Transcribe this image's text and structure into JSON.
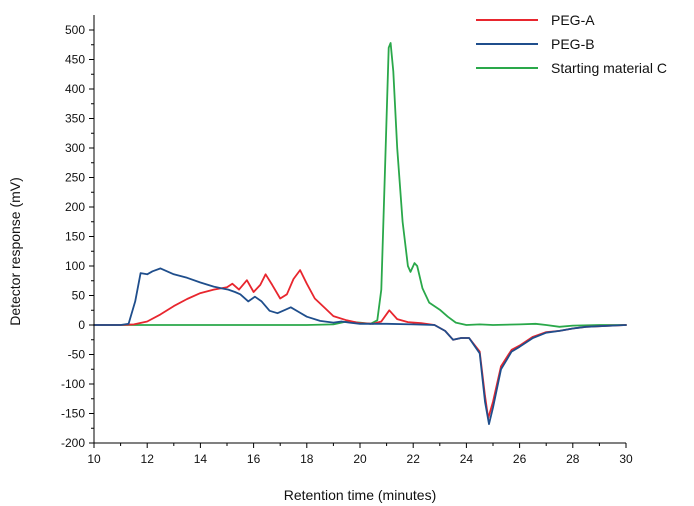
{
  "chart_data": {
    "type": "line",
    "title": "",
    "xlabel": "Retention time (minutes)",
    "ylabel": "Detector response (mV)",
    "xlim": [
      10,
      30
    ],
    "ylim": [
      -200,
      520
    ],
    "xticks": [
      10,
      12,
      14,
      16,
      18,
      20,
      22,
      24,
      26,
      28,
      30
    ],
    "yticks": [
      -200,
      -150,
      -100,
      -50,
      0,
      50,
      100,
      150,
      200,
      250,
      300,
      350,
      400,
      450,
      500
    ],
    "grid": false,
    "legend_position": "top-right",
    "series": [
      {
        "name": "PEG-A",
        "color": "#e8262e",
        "points": [
          [
            10,
            0
          ],
          [
            11,
            0
          ],
          [
            11.5,
            1
          ],
          [
            12,
            6
          ],
          [
            12.5,
            18
          ],
          [
            13,
            32
          ],
          [
            13.5,
            44
          ],
          [
            14,
            54
          ],
          [
            14.5,
            60
          ],
          [
            15,
            64
          ],
          [
            15.2,
            70
          ],
          [
            15.45,
            60
          ],
          [
            15.75,
            76
          ],
          [
            16,
            56
          ],
          [
            16.25,
            68
          ],
          [
            16.45,
            86
          ],
          [
            16.7,
            68
          ],
          [
            17,
            45
          ],
          [
            17.25,
            52
          ],
          [
            17.5,
            78
          ],
          [
            17.75,
            93
          ],
          [
            18,
            70
          ],
          [
            18.3,
            45
          ],
          [
            18.7,
            28
          ],
          [
            19,
            15
          ],
          [
            19.5,
            8
          ],
          [
            20,
            3
          ],
          [
            20.5,
            2
          ],
          [
            20.8,
            6
          ],
          [
            21.1,
            25
          ],
          [
            21.4,
            10
          ],
          [
            21.8,
            5
          ],
          [
            22.3,
            3
          ],
          [
            22.8,
            0
          ],
          [
            23.2,
            -10
          ],
          [
            23.5,
            -25
          ],
          [
            23.8,
            -22
          ],
          [
            24.1,
            -22
          ],
          [
            24.5,
            -45
          ],
          [
            24.7,
            -120
          ],
          [
            24.82,
            -158
          ],
          [
            25,
            -130
          ],
          [
            25.3,
            -70
          ],
          [
            25.7,
            -42
          ],
          [
            26,
            -35
          ],
          [
            26.5,
            -20
          ],
          [
            27,
            -12
          ],
          [
            27.5,
            -10
          ],
          [
            28,
            -6
          ],
          [
            28.5,
            -3
          ],
          [
            29,
            -2
          ],
          [
            30,
            0
          ]
        ]
      },
      {
        "name": "PEG-B",
        "color": "#1f4e8c",
        "points": [
          [
            10,
            0
          ],
          [
            11,
            0
          ],
          [
            11.3,
            2
          ],
          [
            11.55,
            40
          ],
          [
            11.75,
            88
          ],
          [
            12,
            86
          ],
          [
            12.2,
            91
          ],
          [
            12.5,
            96
          ],
          [
            13,
            86
          ],
          [
            13.5,
            80
          ],
          [
            14,
            72
          ],
          [
            14.5,
            65
          ],
          [
            14.8,
            62
          ],
          [
            15.05,
            60
          ],
          [
            15.3,
            56
          ],
          [
            15.5,
            52
          ],
          [
            15.8,
            40
          ],
          [
            16.05,
            48
          ],
          [
            16.3,
            40
          ],
          [
            16.6,
            24
          ],
          [
            16.9,
            20
          ],
          [
            17.2,
            26
          ],
          [
            17.4,
            30
          ],
          [
            17.7,
            22
          ],
          [
            18,
            14
          ],
          [
            18.5,
            7
          ],
          [
            19,
            4
          ],
          [
            19.3,
            6
          ],
          [
            19.6,
            4
          ],
          [
            20,
            2
          ],
          [
            21,
            2
          ],
          [
            22,
            1
          ],
          [
            22.8,
            0
          ],
          [
            23.2,
            -10
          ],
          [
            23.5,
            -25
          ],
          [
            23.8,
            -22
          ],
          [
            24.1,
            -22
          ],
          [
            24.5,
            -48
          ],
          [
            24.7,
            -130
          ],
          [
            24.85,
            -168
          ],
          [
            25,
            -140
          ],
          [
            25.3,
            -75
          ],
          [
            25.7,
            -45
          ],
          [
            26,
            -37
          ],
          [
            26.5,
            -22
          ],
          [
            27,
            -13
          ],
          [
            27.5,
            -10
          ],
          [
            28,
            -6
          ],
          [
            28.5,
            -3
          ],
          [
            29,
            -2
          ],
          [
            30,
            0
          ]
        ]
      },
      {
        "name": "Starting material C",
        "color": "#2aa84a",
        "points": [
          [
            10,
            0
          ],
          [
            16,
            0
          ],
          [
            18,
            0
          ],
          [
            19,
            1
          ],
          [
            19.5,
            6
          ],
          [
            20,
            4
          ],
          [
            20.4,
            2
          ],
          [
            20.65,
            8
          ],
          [
            20.8,
            60
          ],
          [
            20.95,
            280
          ],
          [
            21.08,
            470
          ],
          [
            21.15,
            478
          ],
          [
            21.25,
            430
          ],
          [
            21.4,
            300
          ],
          [
            21.6,
            175
          ],
          [
            21.8,
            100
          ],
          [
            21.9,
            90
          ],
          [
            22.05,
            105
          ],
          [
            22.15,
            100
          ],
          [
            22.35,
            62
          ],
          [
            22.6,
            38
          ],
          [
            23,
            26
          ],
          [
            23.3,
            14
          ],
          [
            23.6,
            4
          ],
          [
            24,
            0
          ],
          [
            24.5,
            1
          ],
          [
            25,
            0
          ],
          [
            26,
            1
          ],
          [
            26.6,
            2
          ],
          [
            27,
            0
          ],
          [
            27.5,
            -3
          ],
          [
            28,
            -1
          ],
          [
            29,
            0
          ],
          [
            30,
            0
          ]
        ]
      }
    ]
  }
}
